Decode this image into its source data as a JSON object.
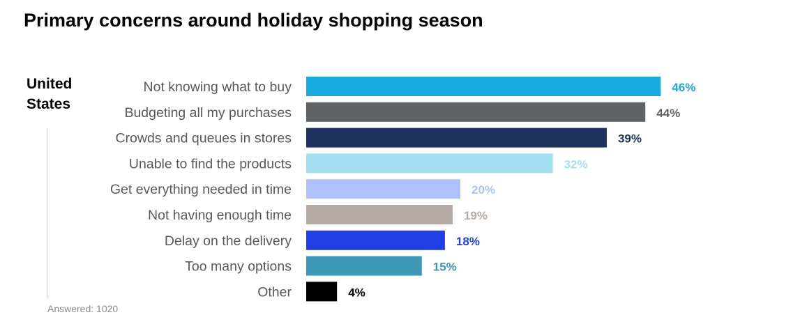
{
  "title": "Primary concerns around holiday shopping season",
  "region": "United States",
  "footnote": "Answered: 1020",
  "chart_data": {
    "type": "bar",
    "orientation": "horizontal",
    "title": "Primary concerns around holiday shopping season",
    "xlabel": "",
    "ylabel": "",
    "unit": "%",
    "grid": false,
    "categories": [
      "Not knowing what to buy",
      "Budgeting all my purchases",
      "Crowds and queues in stores",
      "Unable to find the products",
      "Get everything needed in time",
      "Not having enough time",
      "Delay on the delivery",
      "Too many options",
      "Other"
    ],
    "values": [
      46,
      44,
      39,
      32,
      20,
      19,
      18,
      15,
      4
    ],
    "labels": [
      "46%",
      "44%",
      "39%",
      "32%",
      "20%",
      "19%",
      "18%",
      "15%",
      "4%"
    ],
    "colors": [
      "#16ABE0",
      "#5E6265",
      "#1C335E",
      "#A3DFF3",
      "#AEC1FB",
      "#B4ABA6",
      "#203FE6",
      "#3B98B6",
      "#000000"
    ]
  }
}
